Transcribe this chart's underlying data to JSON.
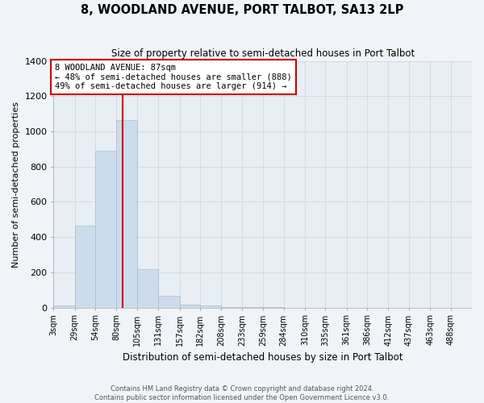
{
  "title": "8, WOODLAND AVENUE, PORT TALBOT, SA13 2LP",
  "subtitle": "Size of property relative to semi-detached houses in Port Talbot",
  "xlabel": "Distribution of semi-detached houses by size in Port Talbot",
  "ylabel": "Number of semi-detached properties",
  "footer_line1": "Contains HM Land Registry data © Crown copyright and database right 2024.",
  "footer_line2": "Contains public sector information licensed under the Open Government Licence v3.0.",
  "annotation_title": "8 WOODLAND AVENUE: 87sqm",
  "annotation_line2": "← 48% of semi-detached houses are smaller (888)",
  "annotation_line3": "49% of semi-detached houses are larger (914) →",
  "property_size_sqm": 87,
  "bar_edges": [
    3,
    29,
    54,
    80,
    105,
    131,
    157,
    182,
    208,
    233,
    259,
    284,
    310,
    335,
    361,
    386,
    412,
    437,
    463,
    488,
    514
  ],
  "bar_heights": [
    12,
    466,
    888,
    1065,
    218,
    68,
    16,
    10,
    5,
    2,
    2,
    0,
    0,
    0,
    0,
    0,
    0,
    0,
    0,
    0
  ],
  "bar_color": "#ccdcec",
  "bar_edgecolor": "#aabccc",
  "property_line_color": "#cc0000",
  "annotation_box_edgecolor": "#cc0000",
  "grid_color": "#d0dce8",
  "background_color": "#f0f4f8",
  "plot_bg_color": "#e8eef4",
  "ylim": [
    0,
    1400
  ],
  "yticks": [
    0,
    200,
    400,
    600,
    800,
    1000,
    1200,
    1400
  ]
}
